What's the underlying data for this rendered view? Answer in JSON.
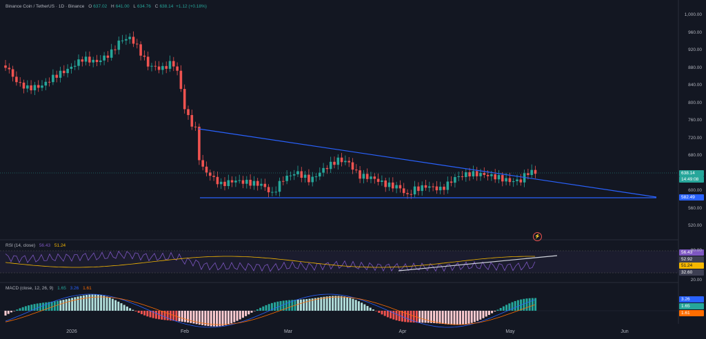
{
  "legend": {
    "symbol": "Binance Coin / TetherUS · 1D · Binance",
    "open_label": "O",
    "open": "637.02",
    "high_label": "H",
    "high": "641.00",
    "low_label": "L",
    "low": "634.76",
    "close_label": "C",
    "close": "638.14",
    "change": "+1.12 (+0.18%)"
  },
  "price_axis": [
    "1,000.00",
    "960.00",
    "920.00",
    "880.00",
    "840.00",
    "800.00",
    "760.00",
    "720.00",
    "680.00",
    "640.00",
    "600.00",
    "560.00",
    "520.00"
  ],
  "price_tags": {
    "last_price": "638.14",
    "countdown": "14:49:08",
    "support": "582.49"
  },
  "rsi": {
    "legend": "RSI (14, close)",
    "rsi_value": "56.43",
    "ma_value": "51.24",
    "axis": [
      "80.00",
      "20.00"
    ],
    "tags": [
      "56.43",
      "52.92",
      "51.24",
      "32.60"
    ]
  },
  "macd": {
    "legend": "MACD (close, 12, 26, 9)",
    "hist_value": "1.65",
    "macd_value": "3.26",
    "signal_value": "1.61",
    "tags": [
      "3.26",
      "1.65",
      "1.61"
    ]
  },
  "time_axis": [
    "2026",
    "Feb",
    "Mar",
    "Apr",
    "May",
    "Jun"
  ],
  "colors": {
    "up": "#26a69a",
    "down": "#ef5350",
    "trendline": "#2962ff",
    "background": "#131722"
  }
}
